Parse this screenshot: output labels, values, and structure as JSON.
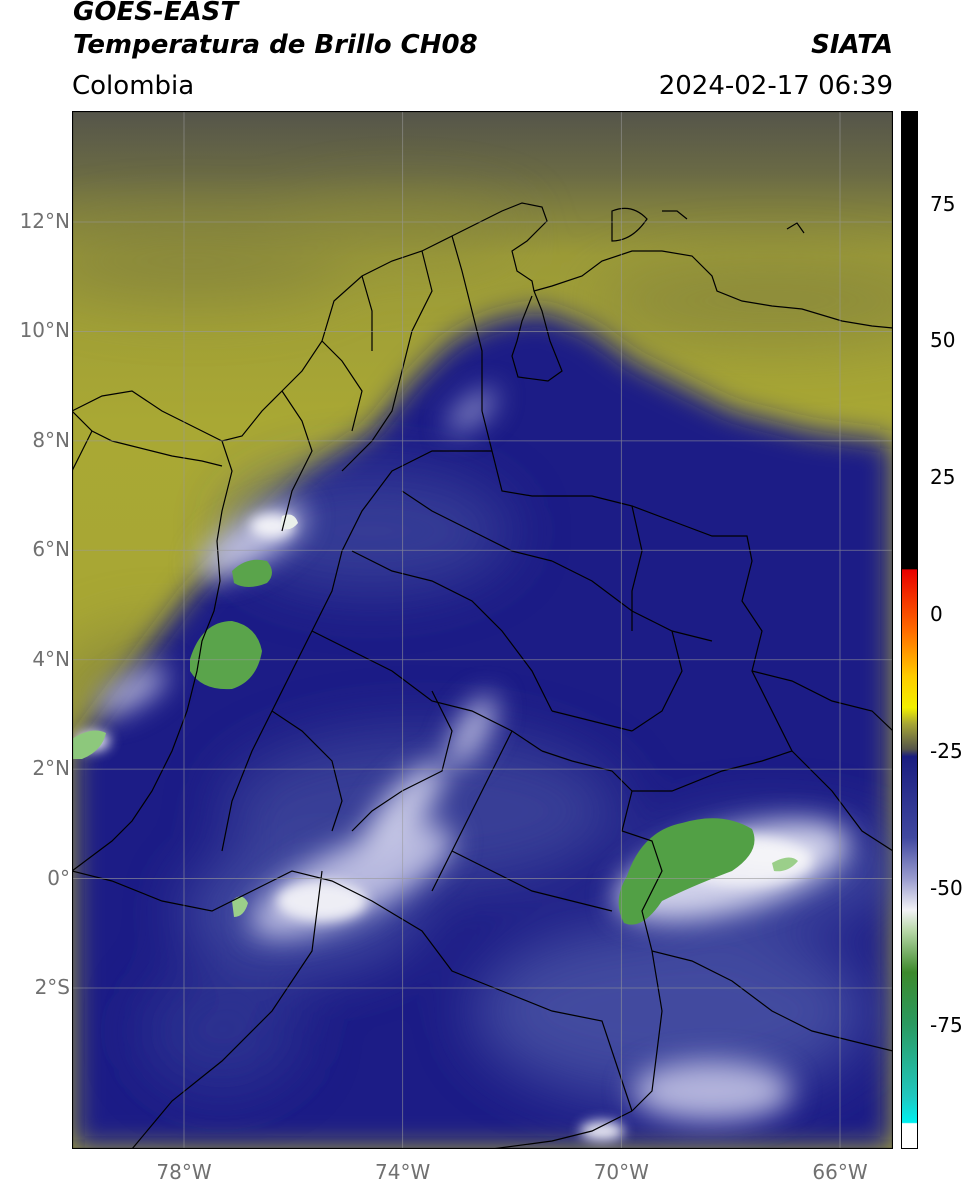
{
  "header": {
    "satellite": "GOES-EAST",
    "product": "Temperatura de Brillo CH08",
    "region": "Colombia",
    "agency": "SIATA",
    "datetime": "2024-02-17 06:39"
  },
  "map": {
    "lon_range": [
      -80,
      -65
    ],
    "lat_range": [
      -5,
      14
    ],
    "lat_ticks": [
      {
        "value": 12,
        "label": "12°N"
      },
      {
        "value": 10,
        "label": "10°N"
      },
      {
        "value": 8,
        "label": "8°N"
      },
      {
        "value": 6,
        "label": "6°N"
      },
      {
        "value": 4,
        "label": "4°N"
      },
      {
        "value": 2,
        "label": "2°N"
      },
      {
        "value": 0,
        "label": "0°"
      },
      {
        "value": -2,
        "label": "2°S"
      }
    ],
    "lon_ticks": [
      {
        "value": -78,
        "label": "78°W"
      },
      {
        "value": -74,
        "label": "74°W"
      },
      {
        "value": -70,
        "label": "70°W"
      },
      {
        "value": -66,
        "label": "66°W"
      }
    ],
    "grid": true,
    "colors": {
      "warm_olive": "#a9a834",
      "dark_gray": "#55554a",
      "deep_blue": "#1c1f86",
      "mid_blue": "#3a4098",
      "light_lavender": "#c9c9e6",
      "white": "#f4f4f6",
      "cold_green": "#4f9a3c"
    }
  },
  "colorbar": {
    "range": [
      -95,
      90
    ],
    "ticks": [
      {
        "value": 75,
        "label": "75"
      },
      {
        "value": 50,
        "label": "50"
      },
      {
        "value": 25,
        "label": "25"
      },
      {
        "value": 0,
        "label": "0"
      },
      {
        "value": -25,
        "label": "-25"
      },
      {
        "value": -50,
        "label": "-50"
      },
      {
        "value": -75,
        "label": "-75"
      }
    ]
  }
}
